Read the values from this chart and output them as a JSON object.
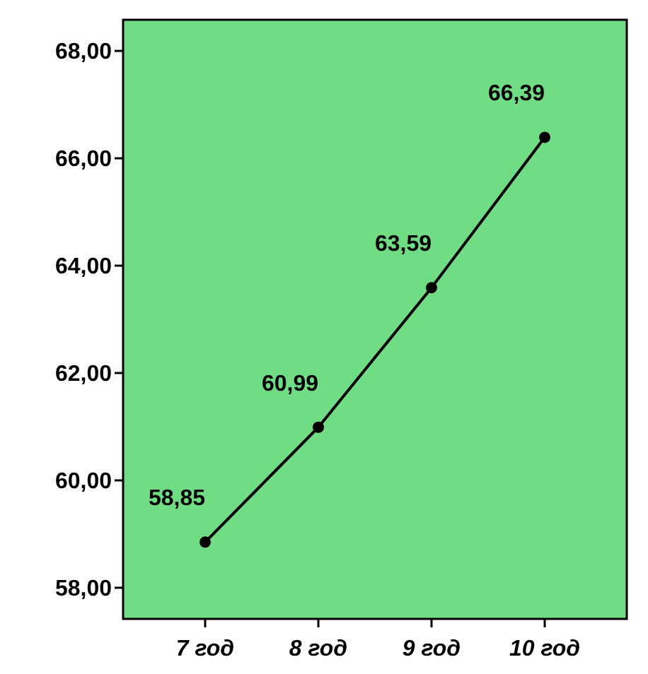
{
  "chart_data": {
    "type": "line",
    "categories": [
      "7 год",
      "8 год",
      "9 год",
      "10 год"
    ],
    "series": [
      {
        "color": "#000000",
        "values": [
          58.85,
          60.99,
          63.59,
          66.39
        ],
        "value_labels": [
          "58,85",
          "60,99",
          "63,59",
          "66,39"
        ]
      }
    ],
    "ylim": [
      57.42,
      68.58
    ],
    "yticks": [
      {
        "value": 58,
        "label": "58,00"
      },
      {
        "value": 60,
        "label": "60,00"
      },
      {
        "value": 62,
        "label": "62,00"
      },
      {
        "value": 64,
        "label": "64,00"
      },
      {
        "value": 66,
        "label": "66,00"
      },
      {
        "value": 68,
        "label": "68,00"
      }
    ],
    "grid": false,
    "marker": "circle",
    "line_style": "solid"
  }
}
